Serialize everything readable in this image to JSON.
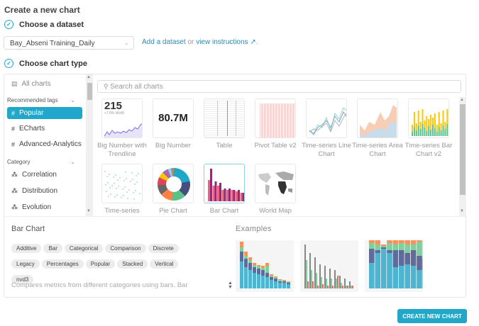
{
  "header": {
    "title": "Create a new chart"
  },
  "steps": {
    "dataset": {
      "label": "Choose a dataset",
      "selected": "Bay_Abseni Training_Daily",
      "add_link": "Add a dataset",
      "or": "or",
      "instructions_link": "view instructions",
      "external_icon": "external-link-icon"
    },
    "chart_type": {
      "label": "Choose chart type"
    }
  },
  "sidebar": {
    "all_charts": "All charts",
    "recommended_label": "Recommended tags",
    "recommended": [
      {
        "label": "Popular",
        "active": true
      },
      {
        "label": "ECharts"
      },
      {
        "label": "Advanced-Analytics"
      }
    ],
    "category_label": "Category",
    "categories": [
      {
        "label": "Correlation"
      },
      {
        "label": "Distribution"
      },
      {
        "label": "Evolution"
      }
    ]
  },
  "search": {
    "placeholder": "Search all charts"
  },
  "charts": [
    {
      "label": "Big Number with Trendline",
      "big": "215",
      "sub": "+7.0% WoW"
    },
    {
      "label": "Big Number",
      "big": "80.7M"
    },
    {
      "label": "Table"
    },
    {
      "label": "Pivot Table v2"
    },
    {
      "label": "Time-series Line Chart"
    },
    {
      "label": "Time-series Area Chart"
    },
    {
      "label": "Time-series Bar Chart v2"
    },
    {
      "label": "Time-series"
    },
    {
      "label": "Pie Chart"
    },
    {
      "label": "Bar Chart",
      "selected": true
    },
    {
      "label": "World Map"
    }
  ],
  "detail": {
    "title": "Bar Chart",
    "tags": [
      "Additive",
      "Bar",
      "Categorical",
      "Comparison",
      "Discrete",
      "Legacy",
      "Percentages",
      "Popular",
      "Stacked",
      "Vertical",
      "nvd3"
    ],
    "description": "Compares metrics from different categories using bars. Bar",
    "examples_title": "Examples"
  },
  "colors": {
    "accent": "#20a7c9"
  },
  "footer": {
    "create_button": "CREATE NEW CHART"
  }
}
